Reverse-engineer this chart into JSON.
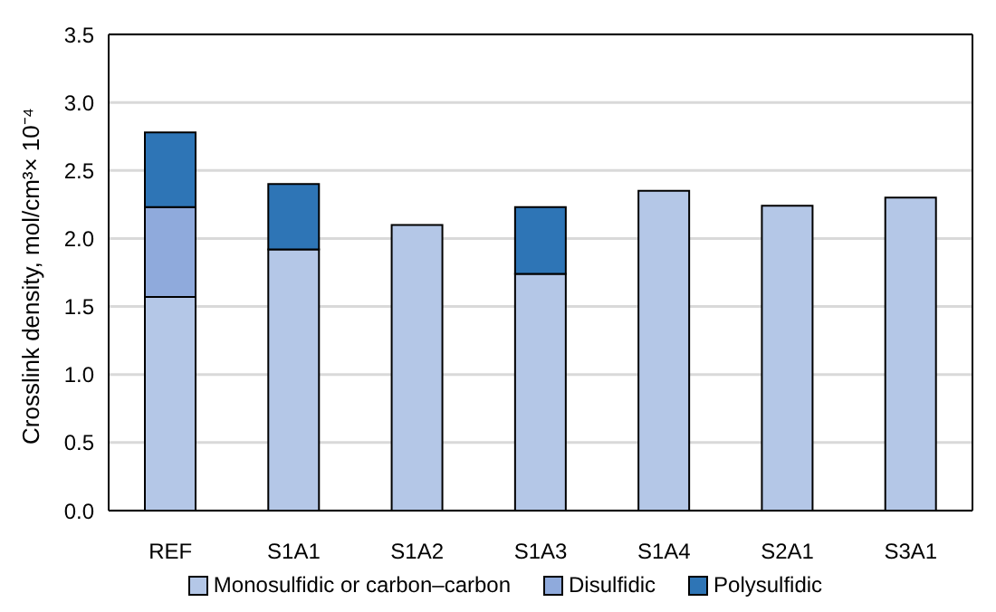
{
  "chart_data": {
    "type": "bar",
    "stacked": true,
    "ylabel": "Crosslink density, mol/cm³× 10⁻⁴",
    "categories": [
      "REF",
      "S1A1",
      "S1A2",
      "S1A3",
      "S1A4",
      "S2A1",
      "S3A1"
    ],
    "series": [
      {
        "name": "Monosulfidic or carbon–carbon",
        "color": "#b4c7e7",
        "values": [
          1.57,
          1.92,
          2.1,
          1.74,
          2.35,
          2.24,
          2.3
        ]
      },
      {
        "name": "Disulfidic",
        "color": "#8faadc",
        "values": [
          0.66,
          null,
          null,
          null,
          null,
          null,
          null
        ]
      },
      {
        "name": "Polysulfidic",
        "color": "#2e75b6",
        "values": [
          0.55,
          0.48,
          null,
          0.49,
          null,
          null,
          null
        ]
      }
    ],
    "ylim": [
      0,
      3.5
    ],
    "yticks": [
      {
        "value": 0,
        "label": "0.0"
      },
      0.5,
      {
        "value": 1,
        "label": "1.0"
      },
      1.5,
      {
        "value": 2,
        "label": "2.0"
      },
      2.5,
      {
        "value": 3,
        "label": "3.0"
      },
      3.5
    ],
    "grid": "y",
    "legend": "bottom"
  }
}
